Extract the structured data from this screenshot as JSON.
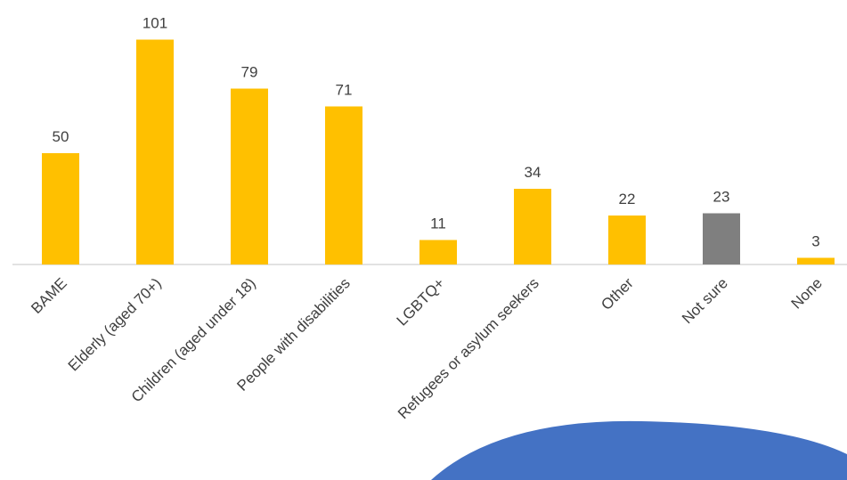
{
  "chart_data": {
    "type": "bar",
    "title": "",
    "xlabel": "",
    "ylabel": "",
    "ylim": [
      0,
      110
    ],
    "grid": false,
    "legend": "none",
    "categories": [
      "BAME",
      "Elderly (aged 70+)",
      "Children (aged under 18)",
      "People with disabilities",
      "LGBTQ+",
      "Refugees or asylum seekers",
      "Other",
      "Not sure",
      "None"
    ],
    "values": [
      50,
      101,
      79,
      71,
      11,
      34,
      22,
      23,
      3
    ],
    "data_labels": [
      "50",
      "101",
      "79",
      "71",
      "11",
      "34",
      "22",
      "23",
      "3"
    ],
    "colors": [
      "#ffc000",
      "#ffc000",
      "#ffc000",
      "#ffc000",
      "#ffc000",
      "#ffc000",
      "#ffc000",
      "#7f7f7f",
      "#ffc000"
    ]
  },
  "decoration": {
    "circle_color": "#4472c4"
  }
}
